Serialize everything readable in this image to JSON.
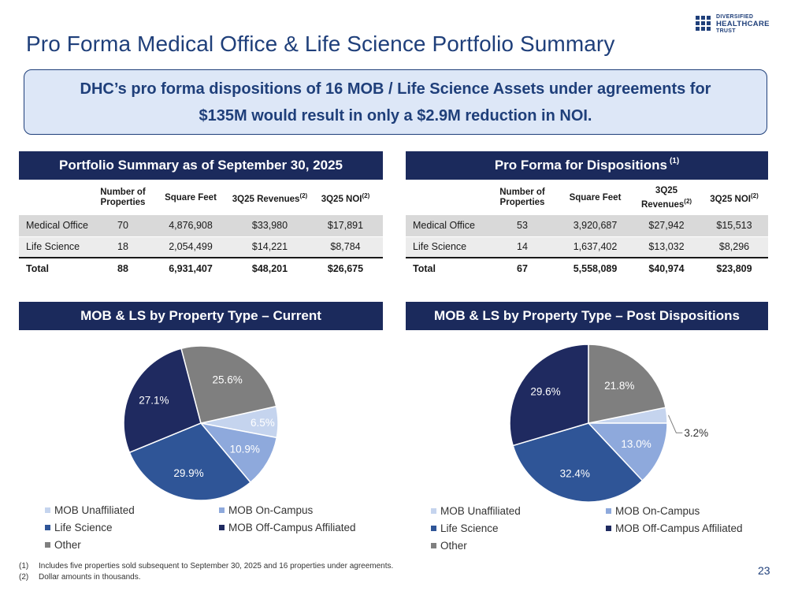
{
  "title": "Pro Forma Medical Office & Life Science Portfolio Summary",
  "logo": {
    "line1": "DIVERSIFIED",
    "line2": "HEALTHCARE",
    "line3": "TRUST"
  },
  "callout": "DHC’s pro forma dispositions of 16 MOB / Life Science Assets under agreements for $135M would result in only a $2.9M reduction in NOI.",
  "table_current": {
    "header": "Portfolio Summary as of September 30, 2025",
    "columns": [
      "Number of Properties",
      "Square Feet",
      "3Q25 Revenues",
      "3Q25 NOI"
    ],
    "column_notes": [
      "",
      "",
      "(2)",
      "(2)"
    ],
    "rows": [
      {
        "label": "Medical Office",
        "cells": [
          "70",
          "4,876,908",
          "$33,980",
          "$17,891"
        ]
      },
      {
        "label": "Life Science",
        "cells": [
          "18",
          "2,054,499",
          "$14,221",
          "$8,784"
        ]
      },
      {
        "label": "Total",
        "cells": [
          "88",
          "6,931,407",
          "$48,201",
          "$26,675"
        ]
      }
    ]
  },
  "table_proforma": {
    "header": "Pro Forma for Dispositions",
    "header_note": "(1)",
    "columns": [
      "Number of Properties",
      "Square Feet",
      "3Q25 Revenues",
      "3Q25 NOI"
    ],
    "column_notes": [
      "",
      "",
      "(2)",
      "(2)"
    ],
    "rows": [
      {
        "label": "Medical Office",
        "cells": [
          "53",
          "3,920,687",
          "$27,942",
          "$15,513"
        ]
      },
      {
        "label": "Life Science",
        "cells": [
          "14",
          "1,637,402",
          "$13,032",
          "$8,296"
        ]
      },
      {
        "label": "Total",
        "cells": [
          "67",
          "5,558,089",
          "$40,974",
          "$23,809"
        ]
      }
    ]
  },
  "chart_data": [
    {
      "type": "pie",
      "title": "MOB & LS by Property Type – Current",
      "categories": [
        "MOB Unaffiliated",
        "MOB On-Campus",
        "Life Science",
        "MOB Off-Campus Affiliated",
        "Other"
      ],
      "values": [
        6.5,
        10.9,
        29.9,
        27.1,
        25.6
      ],
      "labels": [
        "6.5%",
        "10.9%",
        "29.9%",
        "27.1%",
        "25.6%"
      ],
      "colors": [
        "#c5d4ee",
        "#8ea9dc",
        "#2f5597",
        "#1f2a60",
        "#7f7f7f"
      ],
      "start_angle_deg": 77.4,
      "legend": "bottom"
    },
    {
      "type": "pie",
      "title": "MOB & LS by Property Type – Post Dispositions",
      "categories": [
        "MOB Unaffiliated",
        "MOB On-Campus",
        "Life Science",
        "MOB Off-Campus Affiliated",
        "Other"
      ],
      "values": [
        3.2,
        13.0,
        32.4,
        29.6,
        21.8
      ],
      "labels": [
        "3.2%",
        "13.0%",
        "32.4%",
        "29.6%",
        "21.8%"
      ],
      "colors": [
        "#c5d4ee",
        "#8ea9dc",
        "#2f5597",
        "#1f2a60",
        "#7f7f7f"
      ],
      "start_angle_deg": 78.5,
      "legend": "bottom"
    }
  ],
  "footnotes": [
    {
      "num": "(1)",
      "text": "Includes five properties sold subsequent to September 30, 2025 and 16 properties under agreements."
    },
    {
      "num": "(2)",
      "text": "Dollar amounts in thousands."
    }
  ],
  "page_number": "23"
}
